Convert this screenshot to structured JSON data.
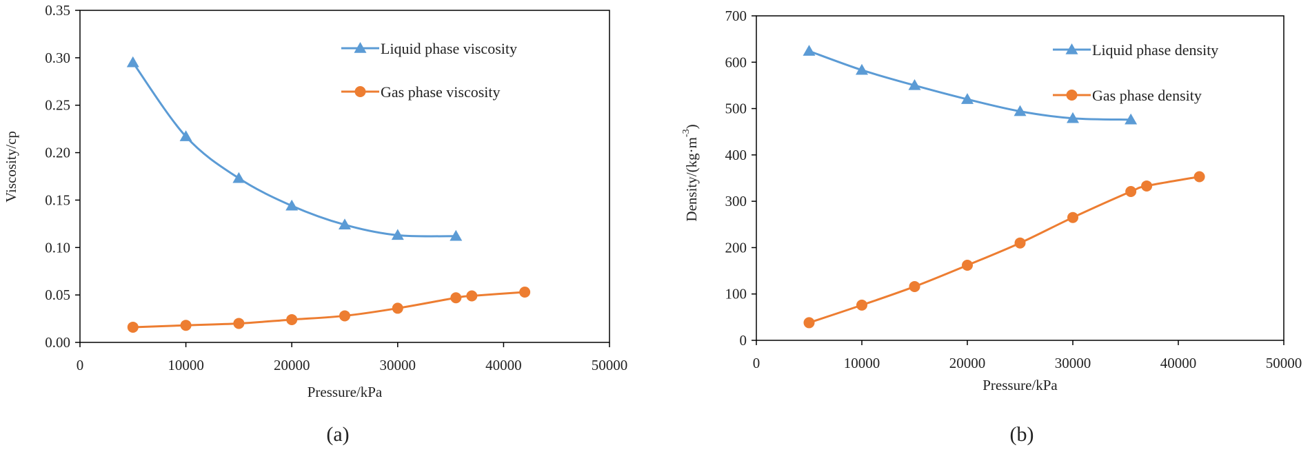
{
  "colors": {
    "liquid": "#5B9BD5",
    "gas": "#ED7D31"
  },
  "chart_data": [
    {
      "type": "line",
      "caption": "(a)",
      "xlabel": "Pressure/kPa",
      "ylabel": "Viscosity/cp",
      "xlim": [
        0,
        50000
      ],
      "ylim": [
        0,
        0.35
      ],
      "x_ticks": [
        0,
        10000,
        20000,
        30000,
        40000,
        50000
      ],
      "y_ticks": [
        0.0,
        0.05,
        0.1,
        0.15,
        0.2,
        0.25,
        0.3,
        0.35
      ],
      "y_tick_labels": [
        "0.00",
        "0.05",
        "0.10",
        "0.15",
        "0.20",
        "0.25",
        "0.30",
        "0.35"
      ],
      "x_tick_labels": [
        "0",
        "10000",
        "20000",
        "30000",
        "40000",
        "50000"
      ],
      "grid": false,
      "legend_position": "top-right",
      "series": [
        {
          "name": "Liquid phase viscosity",
          "marker": "triangle",
          "color_key": "liquid",
          "x": [
            5000,
            10000,
            15000,
            20000,
            25000,
            30000,
            35500
          ],
          "y": [
            0.295,
            0.217,
            0.173,
            0.144,
            0.124,
            0.113,
            0.112
          ]
        },
        {
          "name": "Gas phase viscosity",
          "marker": "circle",
          "color_key": "gas",
          "x": [
            5000,
            10000,
            15000,
            20000,
            25000,
            30000,
            35500,
            37000,
            42000
          ],
          "y": [
            0.016,
            0.018,
            0.02,
            0.024,
            0.028,
            0.036,
            0.047,
            0.049,
            0.053
          ]
        }
      ]
    },
    {
      "type": "line",
      "caption": "(b)",
      "xlabel": "Pressure/kPa",
      "ylabel": "Density/(kg·m",
      "ylabel_sup": "-3",
      "ylabel_end": ")",
      "xlim": [
        0,
        50000
      ],
      "ylim": [
        0,
        700
      ],
      "x_ticks": [
        0,
        10000,
        20000,
        30000,
        40000,
        50000
      ],
      "y_ticks": [
        0,
        100,
        200,
        300,
        400,
        500,
        600,
        700
      ],
      "y_tick_labels": [
        "0",
        "100",
        "200",
        "300",
        "400",
        "500",
        "600",
        "700"
      ],
      "x_tick_labels": [
        "0",
        "10000",
        "20000",
        "30000",
        "40000",
        "50000"
      ],
      "grid": false,
      "legend_position": "top-right",
      "series": [
        {
          "name": "Liquid phase density",
          "marker": "triangle",
          "color_key": "liquid",
          "x": [
            5000,
            10000,
            15000,
            20000,
            25000,
            30000,
            35500
          ],
          "y": [
            624,
            583,
            550,
            520,
            494,
            479,
            476
          ]
        },
        {
          "name": "Gas phase density",
          "marker": "circle",
          "color_key": "gas",
          "x": [
            5000,
            10000,
            15000,
            20000,
            25000,
            30000,
            35500,
            37000,
            42000
          ],
          "y": [
            38,
            76,
            116,
            162,
            210,
            265,
            321,
            333,
            353
          ]
        }
      ]
    }
  ]
}
